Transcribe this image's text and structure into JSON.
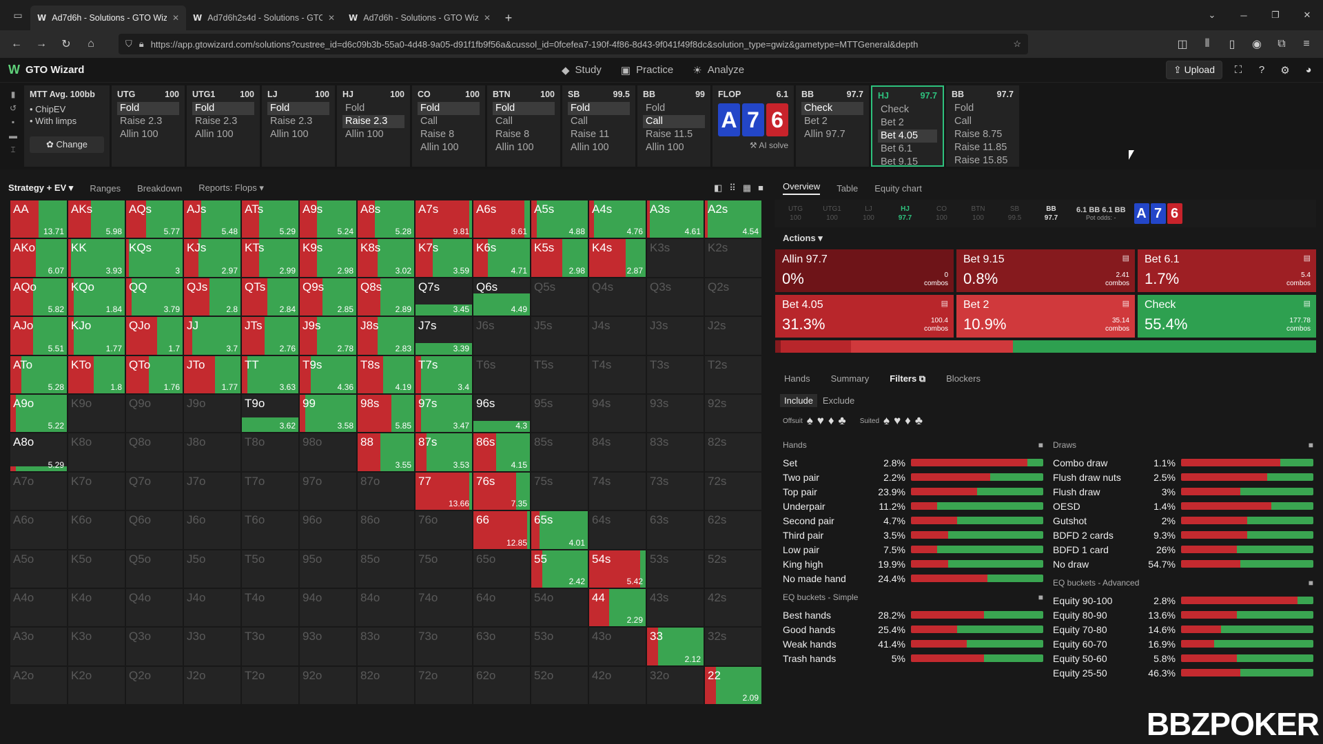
{
  "browser": {
    "tabs": [
      {
        "title": "Ad7d6h - Solutions - GTO Wizard",
        "active": true
      },
      {
        "title": "Ad7d6h2s4d - Solutions - GTO Wizard",
        "active": false
      },
      {
        "title": "Ad7d6h - Solutions - GTO Wizard",
        "active": false
      }
    ],
    "url": "https://app.gtowizard.com/solutions?custree_id=d6c09b3b-55a0-4d48-9a05-d91f1fb9f56a&cussol_id=0fcefea7-190f-4f86-8d43-9f041f49f8dc&solution_type=gwiz&gametype=MTTGeneral&depth"
  },
  "app": {
    "title": "GTO Wizard",
    "nav": [
      "Study",
      "Practice",
      "Analyze"
    ],
    "upload_label": "Upload"
  },
  "tree": {
    "mtt": {
      "title": "MTT Avg. 100bb",
      "items": [
        "ChipEV",
        "With limps"
      ],
      "change": "Change"
    },
    "nodes": [
      {
        "pos": "UTG",
        "stack": "100",
        "actions": [
          "Fold",
          "Raise 2.3",
          "Allin 100"
        ],
        "sel": 0
      },
      {
        "pos": "UTG1",
        "stack": "100",
        "actions": [
          "Fold",
          "Raise 2.3",
          "Allin 100"
        ],
        "sel": 0
      },
      {
        "pos": "LJ",
        "stack": "100",
        "actions": [
          "Fold",
          "Raise 2.3",
          "Allin 100"
        ],
        "sel": 0
      },
      {
        "pos": "HJ",
        "stack": "100",
        "actions": [
          "Fold",
          "Raise 2.3",
          "Allin 100"
        ],
        "sel": 1
      },
      {
        "pos": "CO",
        "stack": "100",
        "actions": [
          "Fold",
          "Call",
          "Raise 8",
          "Allin 100"
        ],
        "sel": 0
      },
      {
        "pos": "BTN",
        "stack": "100",
        "actions": [
          "Fold",
          "Call",
          "Raise 8",
          "Allin 100"
        ],
        "sel": 0
      },
      {
        "pos": "SB",
        "stack": "99.5",
        "actions": [
          "Fold",
          "Call",
          "Raise 11",
          "Allin 100"
        ],
        "sel": 0
      },
      {
        "pos": "BB",
        "stack": "99",
        "actions": [
          "Fold",
          "Call",
          "Raise 11.5",
          "Allin 100"
        ],
        "sel": 1
      }
    ],
    "flop": {
      "label": "FLOP",
      "pot": "6.1",
      "cards": [
        "A",
        "7",
        "6"
      ],
      "ai_solve": "AI solve"
    },
    "post": [
      {
        "pos": "BB",
        "stack": "97.7",
        "actions": [
          "Check",
          "Bet 2",
          "Allin 97.7"
        ],
        "sel": 0,
        "current": false
      },
      {
        "pos": "HJ",
        "stack": "97.7",
        "actions": [
          "Check",
          "Bet 2",
          "Bet 4.05",
          "Bet 6.1",
          "Bet 9.15"
        ],
        "sel": 2,
        "current": true
      },
      {
        "pos": "BB",
        "stack": "97.7",
        "actions": [
          "Fold",
          "Call",
          "Raise 8.75",
          "Raise 11.85",
          "Raise 15.85"
        ],
        "sel": -1,
        "current": false
      }
    ]
  },
  "left_tabs": [
    "Strategy + EV",
    "Ranges",
    "Breakdown",
    "Reports: Flops"
  ],
  "matrix": {
    "hands": [
      [
        "AA",
        "AKs",
        "AQs",
        "AJs",
        "ATs",
        "A9s",
        "A8s",
        "A7s",
        "A6s",
        "A5s",
        "A4s",
        "A3s",
        "A2s"
      ],
      [
        "AKo",
        "KK",
        "KQs",
        "KJs",
        "KTs",
        "K9s",
        "K8s",
        "K7s",
        "K6s",
        "K5s",
        "K4s",
        "K3s",
        "K2s"
      ],
      [
        "AQo",
        "KQo",
        "QQ",
        "QJs",
        "QTs",
        "Q9s",
        "Q8s",
        "Q7s",
        "Q6s",
        "Q5s",
        "Q4s",
        "Q3s",
        "Q2s"
      ],
      [
        "AJo",
        "KJo",
        "QJo",
        "JJ",
        "JTs",
        "J9s",
        "J8s",
        "J7s",
        "J6s",
        "J5s",
        "J4s",
        "J3s",
        "J2s"
      ],
      [
        "ATo",
        "KTo",
        "QTo",
        "JTo",
        "TT",
        "T9s",
        "T8s",
        "T7s",
        "T6s",
        "T5s",
        "T4s",
        "T3s",
        "T2s"
      ],
      [
        "A9o",
        "K9o",
        "Q9o",
        "J9o",
        "T9o",
        "99",
        "98s",
        "97s",
        "96s",
        "95s",
        "94s",
        "93s",
        "92s"
      ],
      [
        "A8o",
        "K8o",
        "Q8o",
        "J8o",
        "T8o",
        "98o",
        "88",
        "87s",
        "86s",
        "85s",
        "84s",
        "83s",
        "82s"
      ],
      [
        "A7o",
        "K7o",
        "Q7o",
        "J7o",
        "T7o",
        "97o",
        "87o",
        "77",
        "76s",
        "75s",
        "74s",
        "73s",
        "72s"
      ],
      [
        "A6o",
        "K6o",
        "Q6o",
        "J6o",
        "T6o",
        "96o",
        "86o",
        "76o",
        "66",
        "65s",
        "64s",
        "63s",
        "62s"
      ],
      [
        "A5o",
        "K5o",
        "Q5o",
        "J5o",
        "T5o",
        "95o",
        "85o",
        "75o",
        "65o",
        "55",
        "54s",
        "53s",
        "52s"
      ],
      [
        "A4o",
        "K4o",
        "Q4o",
        "J4o",
        "T4o",
        "94o",
        "84o",
        "74o",
        "64o",
        "54o",
        "44",
        "43s",
        "42s"
      ],
      [
        "A3o",
        "K3o",
        "Q3o",
        "J3o",
        "T3o",
        "93o",
        "83o",
        "73o",
        "63o",
        "53o",
        "43o",
        "33",
        "32s"
      ],
      [
        "A2o",
        "K2o",
        "Q2o",
        "J2o",
        "T2o",
        "92o",
        "82o",
        "72o",
        "62o",
        "52o",
        "42o",
        "32o",
        "22"
      ]
    ],
    "ev": {
      "AA": "13.71",
      "AKs": "5.98",
      "AQs": "5.77",
      "AJs": "5.48",
      "ATs": "5.29",
      "A9s": "5.24",
      "A8s": "5.28",
      "A7s": "9.81",
      "A6s": "8.61",
      "A5s": "4.88",
      "A4s": "4.76",
      "A3s": "4.61",
      "A2s": "4.54",
      "AKo": "6.07",
      "KK": "3.93",
      "KQs": "3",
      "KJs": "2.97",
      "KTs": "2.99",
      "K9s": "2.98",
      "K8s": "3.02",
      "K7s": "3.59",
      "K6s": "4.71",
      "K5s": "2.98",
      "K4s": "2.87",
      "AQo": "5.82",
      "KQo": "1.84",
      "QQ": "3.79",
      "QJs": "2.8",
      "QTs": "2.84",
      "Q9s": "2.85",
      "Q8s": "2.89",
      "Q7s": "3.45",
      "Q6s": "4.49",
      "AJo": "5.51",
      "KJo": "1.77",
      "QJo": "1.7",
      "JJ": "3.7",
      "JTs": "2.76",
      "J9s": "2.78",
      "J8s": "2.83",
      "J7s": "3.39",
      "ATo": "5.28",
      "KTo": "1.8",
      "QTo": "1.76",
      "JTo": "1.77",
      "TT": "3.63",
      "T9s": "4.36",
      "T8s": "4.19",
      "T7s": "3.4",
      "A9o": "5.22",
      "T9o": "3.62",
      "99": "3.58",
      "98s": "5.85",
      "97s": "3.47",
      "96s": "4.3",
      "A8o": "5.29",
      "88": "3.55",
      "87s": "3.53",
      "86s": "4.15",
      "77": "13.66",
      "76s": "7.35",
      "66": "12.85",
      "65s": "4.01",
      "55": "2.42",
      "54s": "5.42",
      "44": "2.29",
      "33": "2.12",
      "22": "2.09"
    },
    "mix": {
      "AA": [
        50,
        50
      ],
      "AKs": [
        40,
        60
      ],
      "AQs": [
        35,
        65
      ],
      "AJs": [
        30,
        70
      ],
      "ATs": [
        30,
        70
      ],
      "A9s": [
        30,
        70
      ],
      "A8s": [
        30,
        70
      ],
      "A7s": [
        95,
        5
      ],
      "A6s": [
        90,
        10
      ],
      "A5s": [
        10,
        90
      ],
      "A4s": [
        8,
        92
      ],
      "A3s": [
        5,
        95
      ],
      "A2s": [
        5,
        95
      ],
      "AKo": [
        45,
        55
      ],
      "KK": [
        5,
        95
      ],
      "KQs": [
        5,
        95
      ],
      "KJs": [
        25,
        75
      ],
      "KTs": [
        30,
        70
      ],
      "K9s": [
        30,
        70
      ],
      "K8s": [
        35,
        65
      ],
      "K7s": [
        30,
        70
      ],
      "K6s": [
        25,
        75
      ],
      "K5s": [
        55,
        45
      ],
      "K4s": [
        65,
        35
      ],
      "AQo": [
        40,
        60
      ],
      "KQo": [
        10,
        90
      ],
      "QQ": [
        10,
        90
      ],
      "QJs": [
        45,
        55
      ],
      "QTs": [
        45,
        55
      ],
      "Q9s": [
        40,
        60
      ],
      "Q8s": [
        40,
        60
      ],
      "Q7s": [
        0,
        100
      ],
      "Q6s": [
        0,
        100
      ],
      "AJo": [
        40,
        60
      ],
      "KJo": [
        10,
        90
      ],
      "QJo": [
        55,
        45
      ],
      "JJ": [
        15,
        85
      ],
      "JTs": [
        40,
        60
      ],
      "J9s": [
        30,
        70
      ],
      "J8s": [
        35,
        65
      ],
      "J7s": [
        0,
        100
      ],
      "ATo": [
        20,
        80
      ],
      "KTo": [
        45,
        55
      ],
      "QTo": [
        40,
        60
      ],
      "JTo": [
        55,
        45
      ],
      "TT": [
        10,
        90
      ],
      "T9s": [
        20,
        80
      ],
      "T8s": [
        45,
        55
      ],
      "T7s": [
        10,
        90
      ],
      "A9o": [
        10,
        90
      ],
      "T9o": [
        0,
        100
      ],
      "99": [
        10,
        90
      ],
      "98s": [
        60,
        40
      ],
      "97s": [
        10,
        90
      ],
      "96s": [
        0,
        100
      ],
      "A8o": [
        10,
        90
      ],
      "88": [
        40,
        60
      ],
      "87s": [
        20,
        80
      ],
      "86s": [
        40,
        60
      ],
      "77": [
        95,
        5
      ],
      "76s": [
        75,
        25
      ],
      "66": [
        95,
        5
      ],
      "65s": [
        15,
        85
      ],
      "55": [
        20,
        80
      ],
      "54s": [
        90,
        10
      ],
      "44": [
        35,
        65
      ],
      "33": [
        20,
        80
      ],
      "22": [
        20,
        80
      ]
    },
    "partial": {
      "Q7s": 0.3,
      "Q6s": 0.6,
      "J7s": 0.3,
      "T9o": 0.4,
      "96s": 0.3,
      "A8o": 0.12
    }
  },
  "right": {
    "tabs": [
      "Overview",
      "Table",
      "Equity chart"
    ],
    "positions": [
      {
        "p": "UTG",
        "s": "100"
      },
      {
        "p": "UTG1",
        "s": "100"
      },
      {
        "p": "LJ",
        "s": "100"
      },
      {
        "p": "HJ",
        "s": "97.7"
      },
      {
        "p": "CO",
        "s": "100"
      },
      {
        "p": "BTN",
        "s": "100"
      },
      {
        "p": "SB",
        "s": "99.5"
      },
      {
        "p": "BB",
        "s": "97.7"
      }
    ],
    "pot": {
      "line1": "6.1 BB  6.1 BB",
      "line2": "Pot odds: -"
    },
    "actions_label": "Actions",
    "options": [
      {
        "name": "Allin 97.7",
        "pct": "0%",
        "combos": "0",
        "color": "#6e1418"
      },
      {
        "name": "Bet 9.15",
        "pct": "0.8%",
        "combos": "2.41",
        "color": "#861a1e"
      },
      {
        "name": "Bet 6.1",
        "pct": "1.7%",
        "combos": "5.4",
        "color": "#9e1f24"
      },
      {
        "name": "Bet 4.05",
        "pct": "31.3%",
        "combos": "100.4",
        "color": "#b8262b"
      },
      {
        "name": "Bet 2",
        "pct": "10.9%",
        "combos": "35.14",
        "color": "#d0393c"
      },
      {
        "name": "Check",
        "pct": "55.4%",
        "combos": "177.78",
        "color": "#2ea050"
      }
    ],
    "combos_word": "combos",
    "freq": [
      {
        "v": 1,
        "c": "#861a1e"
      },
      {
        "v": 13,
        "c": "#b8262b"
      },
      {
        "v": 30,
        "c": "#d0393c"
      },
      {
        "v": 56,
        "c": "#2ea050"
      }
    ],
    "filter_tabs": [
      "Hands",
      "Summary",
      "Filters",
      "Blockers"
    ],
    "include": "Include",
    "exclude": "Exclude",
    "offsuit": "Offsuit",
    "suited": "Suited",
    "hands_title": "Hands",
    "hands": [
      {
        "n": "Set",
        "p": "2.8%",
        "r": 88
      },
      {
        "n": "Two pair",
        "p": "2.2%",
        "r": 60
      },
      {
        "n": "Top pair",
        "p": "23.9%",
        "r": 50
      },
      {
        "n": "Underpair",
        "p": "11.2%",
        "r": 20
      },
      {
        "n": "Second pair",
        "p": "4.7%",
        "r": 35
      },
      {
        "n": "Third pair",
        "p": "3.5%",
        "r": 28
      },
      {
        "n": "Low pair",
        "p": "7.5%",
        "r": 20
      },
      {
        "n": "King high",
        "p": "19.9%",
        "r": 28
      },
      {
        "n": "No made hand",
        "p": "24.4%",
        "r": 58
      }
    ],
    "eq_simple_title": "EQ buckets - Simple",
    "eq_simple": [
      {
        "n": "Best hands",
        "p": "28.2%",
        "r": 55
      },
      {
        "n": "Good hands",
        "p": "25.4%",
        "r": 35
      },
      {
        "n": "Weak hands",
        "p": "41.4%",
        "r": 42
      },
      {
        "n": "Trash hands",
        "p": "5%",
        "r": 55
      }
    ],
    "draws_title": "Draws",
    "draws": [
      {
        "n": "Combo draw",
        "p": "1.1%",
        "r": 75
      },
      {
        "n": "Flush draw nuts",
        "p": "2.5%",
        "r": 65
      },
      {
        "n": "Flush draw",
        "p": "3%",
        "r": 45
      },
      {
        "n": "OESD",
        "p": "1.4%",
        "r": 68
      },
      {
        "n": "Gutshot",
        "p": "2%",
        "r": 50
      },
      {
        "n": "BDFD 2 cards",
        "p": "9.3%",
        "r": 50
      },
      {
        "n": "BDFD 1 card",
        "p": "26%",
        "r": 42
      },
      {
        "n": "No draw",
        "p": "54.7%",
        "r": 45
      }
    ],
    "eq_adv_title": "EQ buckets - Advanced",
    "eq_adv": [
      {
        "n": "Equity 90-100",
        "p": "2.8%",
        "r": 88
      },
      {
        "n": "Equity 80-90",
        "p": "13.6%",
        "r": 42
      },
      {
        "n": "Equity 70-80",
        "p": "14.6%",
        "r": 30
      },
      {
        "n": "Equity 60-70",
        "p": "16.9%",
        "r": 25
      },
      {
        "n": "Equity 50-60",
        "p": "5.8%",
        "r": 42
      },
      {
        "n": "Equity 25-50",
        "p": "46.3%",
        "r": 45
      }
    ]
  },
  "watermark": "BBZPOKER"
}
